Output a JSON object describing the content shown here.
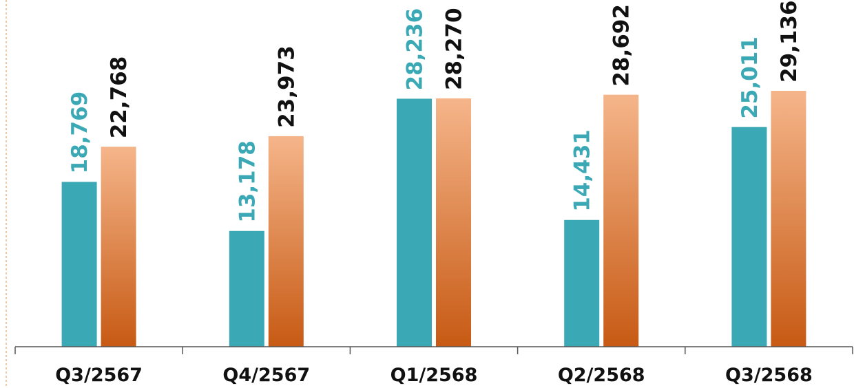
{
  "chart_data": {
    "type": "bar",
    "title": "",
    "xlabel": "",
    "ylabel": "",
    "categories": [
      "Q3/2567",
      "Q4/2567",
      "Q1/2568",
      "Q2/2568",
      "Q3/2568"
    ],
    "series": [
      {
        "values": [
          18769,
          13178,
          28236,
          14431,
          25011
        ],
        "color": "#3ba9b5",
        "label_color": "#3ba9b5"
      },
      {
        "values": [
          22768,
          23973,
          28270,
          28692,
          29136
        ],
        "color_top": "#f5b58a",
        "color_bottom": "#c75a14",
        "label_color": "#111111"
      }
    ],
    "value_labels": [
      [
        "18,769",
        "13,178",
        "28,236",
        "14,431",
        "25,011"
      ],
      [
        "22,768",
        "23,973",
        "28,270",
        "28,692",
        "29,136"
      ]
    ],
    "ylim": [
      0,
      29136
    ],
    "grid": false,
    "legend": "none"
  }
}
